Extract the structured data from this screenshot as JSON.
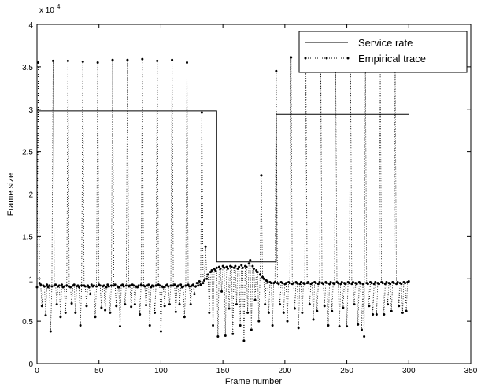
{
  "chart_data": {
    "type": "line",
    "xlabel": "Frame number",
    "ylabel": "Frame size",
    "y_scale_base": "x 10",
    "y_scale_exponent": "4",
    "xlim": [
      0,
      350
    ],
    "ylim": [
      0,
      4
    ],
    "xticks": [
      0,
      50,
      100,
      150,
      200,
      250,
      300,
      350
    ],
    "yticks": [
      0,
      0.5,
      1,
      1.5,
      2,
      2.5,
      3,
      3.5,
      4
    ],
    "legend": "upper right",
    "series": [
      {
        "name": "Service rate",
        "color": "#000000",
        "style": "solid",
        "x": [
          0,
          145,
          145,
          193,
          193,
          300
        ],
        "values": [
          2.98,
          2.98,
          1.2,
          1.2,
          2.94,
          2.94
        ]
      },
      {
        "name": "Empirical trace",
        "color": "#000000",
        "style": "dotted-markers",
        "x": [
          0,
          1,
          2,
          3,
          4,
          5,
          6,
          7,
          8,
          9,
          10,
          11,
          12,
          13,
          14,
          15,
          16,
          17,
          18,
          19,
          20,
          21,
          22,
          23,
          24,
          25,
          26,
          27,
          28,
          29,
          30,
          31,
          32,
          33,
          34,
          35,
          36,
          37,
          38,
          39,
          40,
          41,
          42,
          43,
          44,
          45,
          46,
          47,
          48,
          49,
          50,
          51,
          52,
          53,
          54,
          55,
          56,
          57,
          58,
          59,
          60,
          61,
          62,
          63,
          64,
          65,
          66,
          67,
          68,
          69,
          70,
          71,
          72,
          73,
          74,
          75,
          76,
          77,
          78,
          79,
          80,
          81,
          82,
          83,
          84,
          85,
          86,
          87,
          88,
          89,
          90,
          91,
          92,
          93,
          94,
          95,
          96,
          97,
          98,
          99,
          100,
          101,
          102,
          103,
          104,
          105,
          106,
          107,
          108,
          109,
          110,
          111,
          112,
          113,
          114,
          115,
          116,
          117,
          118,
          119,
          120,
          121,
          122,
          123,
          124,
          125,
          126,
          127,
          128,
          129,
          130,
          131,
          132,
          133,
          134,
          135,
          136,
          137,
          138,
          139,
          140,
          141,
          142,
          143,
          144,
          145,
          146,
          147,
          148,
          149,
          150,
          151,
          152,
          153,
          154,
          155,
          156,
          157,
          158,
          159,
          160,
          161,
          162,
          163,
          164,
          165,
          166,
          167,
          168,
          169,
          170,
          171,
          172,
          173,
          174,
          175,
          176,
          177,
          178,
          179,
          180,
          181,
          182,
          183,
          184,
          185,
          186,
          187,
          188,
          189,
          190,
          191,
          192,
          193,
          194,
          195,
          196,
          197,
          198,
          199,
          200,
          201,
          202,
          203,
          204,
          205,
          206,
          207,
          208,
          209,
          210,
          211,
          212,
          213,
          214,
          215,
          216,
          217,
          218,
          219,
          220,
          221,
          222,
          223,
          224,
          225,
          226,
          227,
          228,
          229,
          230,
          231,
          232,
          233,
          234,
          235,
          236,
          237,
          238,
          239,
          240,
          241,
          242,
          243,
          244,
          245,
          246,
          247,
          248,
          249,
          250,
          251,
          252,
          253,
          254,
          255,
          256,
          257,
          258,
          259,
          260,
          261,
          262,
          263,
          264,
          265,
          266,
          267,
          268,
          269,
          270,
          271,
          272,
          273,
          274,
          275,
          276,
          277,
          278,
          279,
          280,
          281,
          282,
          283,
          284,
          285,
          286,
          287,
          288,
          289,
          290,
          291,
          292,
          293,
          294,
          295,
          296,
          297,
          298,
          299,
          300
        ],
        "values": [
          0.9,
          3.55,
          0.95,
          0.93,
          0.68,
          0.92,
          0.91,
          0.57,
          0.93,
          0.9,
          0.92,
          0.38,
          0.91,
          3.57,
          0.92,
          0.93,
          0.7,
          0.91,
          0.92,
          0.55,
          0.93,
          0.9,
          0.91,
          0.6,
          0.92,
          3.57,
          0.91,
          0.9,
          0.71,
          0.92,
          0.93,
          0.6,
          0.91,
          0.92,
          0.9,
          0.45,
          0.92,
          3.56,
          0.92,
          0.91,
          0.68,
          0.92,
          0.9,
          0.82,
          0.93,
          0.91,
          0.92,
          0.55,
          0.91,
          3.55,
          0.93,
          0.92,
          0.66,
          0.91,
          0.92,
          0.63,
          0.9,
          0.93,
          0.91,
          0.6,
          0.92,
          3.58,
          0.92,
          0.93,
          0.68,
          0.91,
          0.9,
          0.44,
          0.92,
          0.93,
          0.91,
          0.7,
          0.92,
          3.58,
          0.91,
          0.92,
          0.67,
          0.93,
          0.92,
          0.7,
          0.91,
          0.9,
          0.92,
          0.58,
          0.93,
          3.59,
          0.92,
          0.91,
          0.69,
          0.92,
          0.93,
          0.45,
          0.9,
          0.92,
          0.91,
          0.6,
          0.92,
          3.57,
          0.93,
          0.92,
          0.38,
          0.91,
          0.9,
          0.68,
          0.92,
          0.93,
          0.91,
          0.7,
          0.92,
          3.58,
          0.92,
          0.93,
          0.61,
          0.91,
          0.92,
          0.7,
          0.93,
          0.9,
          0.91,
          0.55,
          0.92,
          3.55,
          0.93,
          0.91,
          0.7,
          0.92,
          0.93,
          0.82,
          0.91,
          0.95,
          0.92,
          0.97,
          0.93,
          2.96,
          0.95,
          0.98,
          1.38,
          1.0,
          1.05,
          0.6,
          1.08,
          1.1,
          0.45,
          1.12,
          1.1,
          1.13,
          0.32,
          1.14,
          1.12,
          0.85,
          1.15,
          1.13,
          0.33,
          1.14,
          1.12,
          0.65,
          1.15,
          1.14,
          0.35,
          1.13,
          1.15,
          0.7,
          1.12,
          1.14,
          0.45,
          1.16,
          1.13,
          0.27,
          1.15,
          1.14,
          0.6,
          1.18,
          1.22,
          0.4,
          1.15,
          1.12,
          0.75,
          1.1,
          1.08,
          0.5,
          1.05,
          2.22,
          1.02,
          1.0,
          0.7,
          0.98,
          0.97,
          0.6,
          0.96,
          0.95,
          0.45,
          0.95,
          0.96,
          3.45,
          0.95,
          0.94,
          0.7,
          0.96,
          0.95,
          0.6,
          0.94,
          0.95,
          0.5,
          0.96,
          0.95,
          3.61,
          0.94,
          0.95,
          0.65,
          0.96,
          0.95,
          0.42,
          0.94,
          0.96,
          0.6,
          0.95,
          0.94,
          3.5,
          0.95,
          0.96,
          0.7,
          0.94,
          0.95,
          0.52,
          0.96,
          0.95,
          0.62,
          0.94,
          0.96,
          3.55,
          0.95,
          0.94,
          0.68,
          0.96,
          0.95,
          0.45,
          0.94,
          0.96,
          0.62,
          0.95,
          0.94,
          3.57,
          0.96,
          0.95,
          0.44,
          0.94,
          0.96,
          0.66,
          0.95,
          0.94,
          0.44,
          0.96,
          0.95,
          3.55,
          0.94,
          0.96,
          0.7,
          0.95,
          0.94,
          0.46,
          0.96,
          0.95,
          0.4,
          0.94,
          0.32,
          3.56,
          0.95,
          0.94,
          0.68,
          0.96,
          0.95,
          0.58,
          0.94,
          0.96,
          0.58,
          0.95,
          0.94,
          3.52,
          0.96,
          0.95,
          0.58,
          0.94,
          0.96,
          0.7,
          0.95,
          0.94,
          0.62,
          0.96,
          0.95,
          3.5,
          0.94,
          0.96,
          0.68,
          0.95,
          0.94,
          0.6,
          0.96,
          0.95,
          0.62,
          0.96,
          0.97
        ]
      }
    ]
  }
}
